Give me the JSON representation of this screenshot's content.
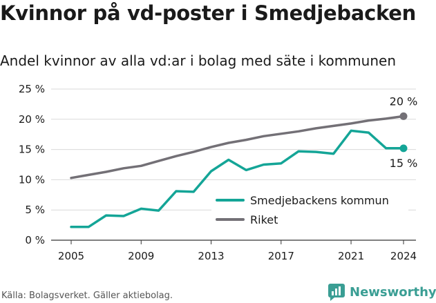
{
  "header": {
    "title": "Kvinnor på vd-poster i Smedjebacken",
    "subtitle": "Andel kvinnor av alla vd:ar i bolag med säte i kommunen"
  },
  "footer": {
    "source": "Källa: Bolagsverket. Gäller aktiebolag.",
    "brand": "Newsworthy",
    "brand_icon": "newsworthy-logo-icon"
  },
  "colors": {
    "smedjebacken": "#14a597",
    "riket": "#737076",
    "grid": "#d9d9d9",
    "text": "#1a1a1a"
  },
  "chart_data": {
    "type": "line",
    "title": "Kvinnor på vd-poster i Smedjebacken",
    "subtitle": "Andel kvinnor av alla vd:ar i bolag med säte i kommunen",
    "xlabel": "",
    "ylabel": "",
    "x": [
      2005,
      2006,
      2007,
      2008,
      2009,
      2010,
      2011,
      2012,
      2013,
      2014,
      2015,
      2016,
      2017,
      2018,
      2019,
      2020,
      2021,
      2022,
      2023,
      2024
    ],
    "xticks": [
      2005,
      2009,
      2013,
      2017,
      2021,
      2024
    ],
    "xtick_labels": [
      "2005",
      "2009",
      "2013",
      "2017",
      "2021",
      "2024"
    ],
    "ylim": [
      0,
      25
    ],
    "yticks": [
      0,
      5,
      10,
      15,
      20,
      25
    ],
    "ytick_labels": [
      "0 %",
      "5 %",
      "10 %",
      "15 %",
      "20 %",
      "25 %"
    ],
    "grid": true,
    "legend_position": "bottom-right",
    "series": [
      {
        "name": "Smedjebackens kommun",
        "color": "#14a597",
        "values": [
          2.2,
          2.2,
          4.1,
          4.0,
          5.2,
          4.9,
          8.1,
          8.0,
          11.4,
          13.3,
          11.6,
          12.5,
          12.7,
          14.7,
          14.6,
          14.3,
          18.1,
          17.8,
          15.2,
          15.2
        ],
        "end_label": "15 %"
      },
      {
        "name": "Riket",
        "color": "#737076",
        "values": [
          10.3,
          10.8,
          11.3,
          11.9,
          12.3,
          13.1,
          13.9,
          14.6,
          15.4,
          16.1,
          16.6,
          17.2,
          17.6,
          18.0,
          18.5,
          18.9,
          19.3,
          19.8,
          20.1,
          20.5
        ],
        "end_label": "20 %"
      }
    ]
  }
}
